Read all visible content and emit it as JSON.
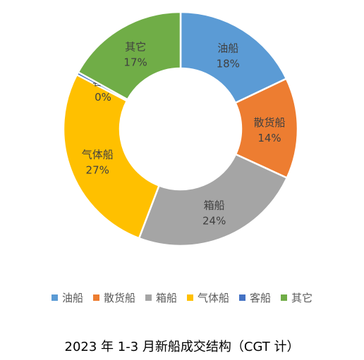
{
  "chart_data": {
    "type": "pie",
    "variant": "donut",
    "title": "2023 年 1-3 月新船成交结构（CGT 计）",
    "legend_position": "bottom",
    "slices": [
      {
        "name": "油船",
        "value": 18,
        "label": "18%",
        "color": "#5B9BD5"
      },
      {
        "name": "散货船",
        "value": 14,
        "label": "14%",
        "color": "#ED7D31"
      },
      {
        "name": "箱船",
        "value": 24,
        "label": "24%",
        "color": "#A5A5A5"
      },
      {
        "name": "气体船",
        "value": 27,
        "label": "27%",
        "color": "#FFC000"
      },
      {
        "name": "客船",
        "value": 0.4,
        "label": "0%",
        "color": "#4472C4"
      },
      {
        "name": "其它",
        "value": 17,
        "label": "17%",
        "color": "#70AD47"
      }
    ]
  }
}
